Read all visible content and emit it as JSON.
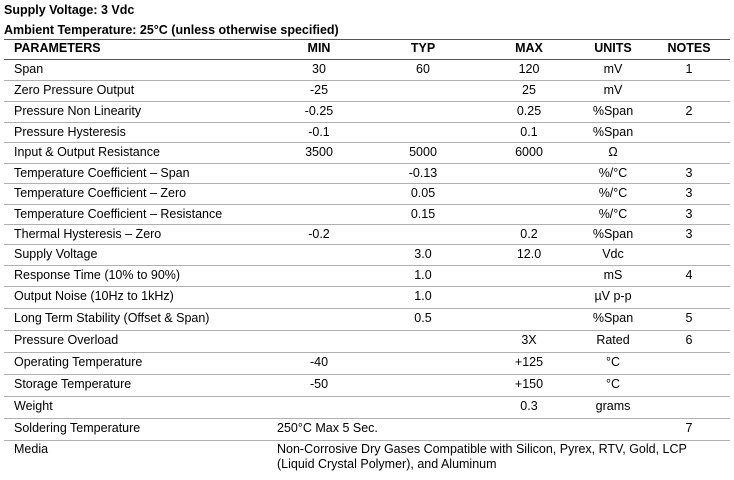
{
  "header": {
    "supply_voltage": "Supply Voltage: 3 Vdc",
    "ambient_temperature": "Ambient Temperature: 25°C (unless otherwise specified)"
  },
  "table": {
    "columns": [
      "PARAMETERS",
      "MIN",
      "TYP",
      "MAX",
      "UNITS",
      "NOTES"
    ],
    "rows": [
      {
        "parameter": "Span",
        "min": "30",
        "typ": "60",
        "max": "120",
        "units": "mV",
        "notes": "1"
      },
      {
        "parameter": "Zero Pressure Output",
        "min": "-25",
        "typ": "",
        "max": "25",
        "units": "mV",
        "notes": ""
      },
      {
        "parameter": "Pressure Non Linearity",
        "min": "-0.25",
        "typ": "",
        "max": "0.25",
        "units": "%Span",
        "notes": "2"
      },
      {
        "parameter": "Pressure Hysteresis",
        "min": "-0.1",
        "typ": "",
        "max": "0.1",
        "units": "%Span",
        "notes": ""
      },
      {
        "parameter": "Input & Output Resistance",
        "min": "3500",
        "typ": "5000",
        "max": "6000",
        "units": "Ω",
        "notes": ""
      },
      {
        "parameter": "Temperature Coefficient – Span",
        "min": "",
        "typ": "-0.13",
        "max": "",
        "units": "%/°C",
        "notes": "3"
      },
      {
        "parameter": "Temperature Coefficient – Zero",
        "min": "",
        "typ": "0.05",
        "max": "",
        "units": "%/°C",
        "notes": "3"
      },
      {
        "parameter": "Temperature Coefficient – Resistance",
        "min": "",
        "typ": "0.15",
        "max": "",
        "units": "%/°C",
        "notes": "3"
      },
      {
        "parameter": "Thermal Hysteresis – Zero",
        "min": "-0.2",
        "typ": "",
        "max": "0.2",
        "units": "%Span",
        "notes": "3"
      },
      {
        "parameter": "Supply Voltage",
        "min": "",
        "typ": "3.0",
        "max": "12.0",
        "units": "Vdc",
        "notes": ""
      },
      {
        "parameter": "Response Time (10% to 90%)",
        "min": "",
        "typ": "1.0",
        "max": "",
        "units": "mS",
        "notes": "4"
      },
      {
        "parameter": "Output Noise (10Hz to 1kHz)",
        "min": "",
        "typ": "1.0",
        "max": "",
        "units": "µV p-p",
        "notes": ""
      },
      {
        "parameter": "Long Term Stability (Offset & Span)",
        "min": "",
        "typ": "0.5",
        "max": "",
        "units": "%Span",
        "notes": "5"
      },
      {
        "parameter": "Pressure Overload",
        "min": "",
        "typ": "",
        "max": "3X",
        "units": "Rated",
        "notes": "6"
      },
      {
        "parameter": "Operating Temperature",
        "min": "-40",
        "typ": "",
        "max": "+125",
        "units": "°C",
        "notes": ""
      },
      {
        "parameter": "Storage Temperature",
        "min": "-50",
        "typ": "",
        "max": "+150",
        "units": "°C",
        "notes": ""
      },
      {
        "parameter": "Weight",
        "min": "",
        "typ": "",
        "max": "0.3",
        "units": "grams",
        "notes": ""
      }
    ],
    "soldering": {
      "parameter": "Soldering Temperature",
      "value": "250°C Max 5 Sec.",
      "notes": "7"
    },
    "media": {
      "parameter": "Media",
      "value": "Non-Corrosive Dry Gases Compatible with Silicon, Pyrex, RTV, Gold, LCP (Liquid Crystal Polymer), and Aluminum"
    }
  }
}
